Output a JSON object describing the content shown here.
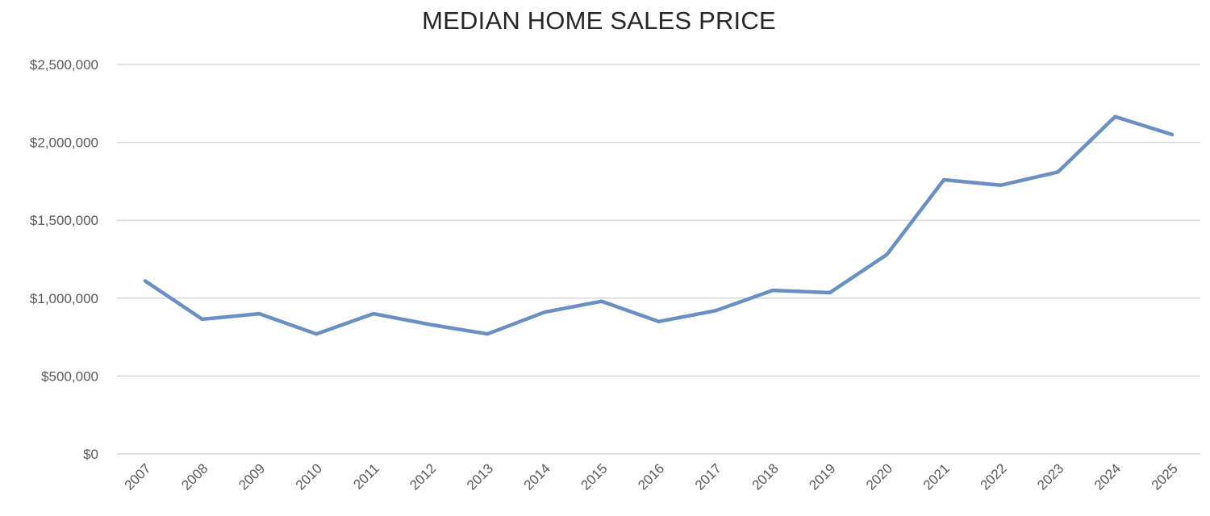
{
  "chart_data": {
    "type": "line",
    "title": "MEDIAN HOME SALES PRICE",
    "xlabel": "",
    "ylabel": "",
    "ylim": [
      0,
      2500000
    ],
    "grid": true,
    "legend": null,
    "y_ticks": [
      "$0",
      "$500,000",
      "$1,000,000",
      "$1,500,000",
      "$2,000,000",
      "$2,500,000"
    ],
    "y_tick_values": [
      0,
      500000,
      1000000,
      1500000,
      2000000,
      2500000
    ],
    "categories": [
      "2007",
      "2008",
      "2009",
      "2010",
      "2011",
      "2012",
      "2013",
      "2014",
      "2015",
      "2016",
      "2017",
      "2018",
      "2019",
      "2020",
      "2021",
      "2022",
      "2023",
      "2024",
      "2025"
    ],
    "series": [
      {
        "name": "Median Home Sales Price",
        "color": "#6a8fc7",
        "values": [
          1110000,
          865000,
          900000,
          770000,
          900000,
          830000,
          770000,
          910000,
          980000,
          850000,
          920000,
          1050000,
          1035000,
          1280000,
          1760000,
          1725000,
          1810000,
          2165000,
          2050000
        ]
      }
    ]
  },
  "colors": {
    "line": "#6a8fc7",
    "grid": "#d9d9d9",
    "tick_text": "#595959",
    "title_text": "#262626"
  }
}
